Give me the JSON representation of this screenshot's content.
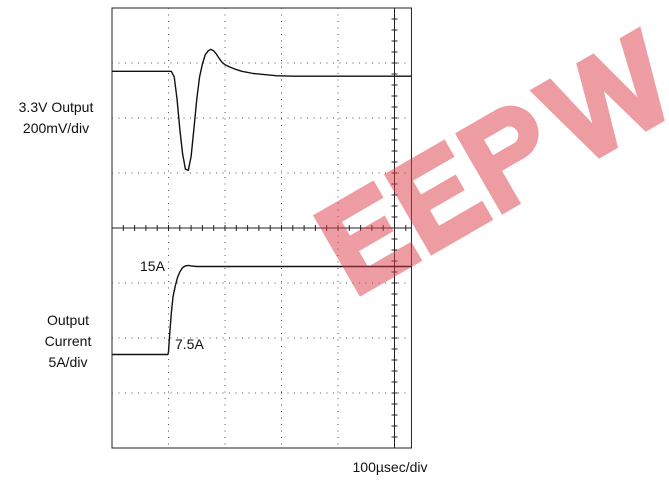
{
  "chart_data": {
    "type": "line",
    "title": "",
    "xlabel": "100µsec/div",
    "channel_labels": {
      "top": [
        "3.3V Output",
        "200mV/div"
      ],
      "bottom": [
        "Output",
        "Current",
        "5A/div"
      ]
    },
    "annotations": {
      "current_high": "15A",
      "current_low": "7.5A"
    },
    "watermark": "EEPW",
    "grid": true,
    "xlim": [
      0,
      5.3
    ],
    "ylim": [
      0,
      8
    ],
    "series": [
      {
        "name": "",
        "x": [
          0,
          1.0,
          1.05,
          1.1,
          1.15,
          1.2,
          1.25,
          1.3,
          1.35,
          1.4,
          1.45,
          1.5,
          1.55,
          1.6,
          1.65,
          1.7,
          1.75,
          1.8,
          1.85,
          1.9,
          1.95,
          2.0,
          2.1,
          2.2,
          2.3,
          2.5,
          2.7,
          2.9,
          3.2,
          3.6,
          4.0,
          4.5,
          5.3
        ],
        "values": [
          6.85,
          6.85,
          6.85,
          6.75,
          6.35,
          5.8,
          5.35,
          5.07,
          5.05,
          5.3,
          5.8,
          6.35,
          6.75,
          6.98,
          7.15,
          7.22,
          7.25,
          7.22,
          7.16,
          7.08,
          7.01,
          6.97,
          6.92,
          6.88,
          6.85,
          6.81,
          6.79,
          6.77,
          6.76,
          6.76,
          6.76,
          6.76,
          6.76
        ]
      },
      {
        "name": "",
        "x": [
          0,
          0.99,
          1.0,
          1.02,
          1.05,
          1.08,
          1.12,
          1.16,
          1.2,
          1.25,
          1.3,
          1.35,
          1.4,
          1.5,
          1.7,
          2.0,
          3.0,
          4.0,
          5.3
        ],
        "values": [
          1.7,
          1.7,
          1.75,
          2.05,
          2.45,
          2.75,
          2.95,
          3.1,
          3.2,
          3.28,
          3.31,
          3.32,
          3.31,
          3.3,
          3.3,
          3.3,
          3.3,
          3.3,
          3.3
        ]
      }
    ]
  }
}
